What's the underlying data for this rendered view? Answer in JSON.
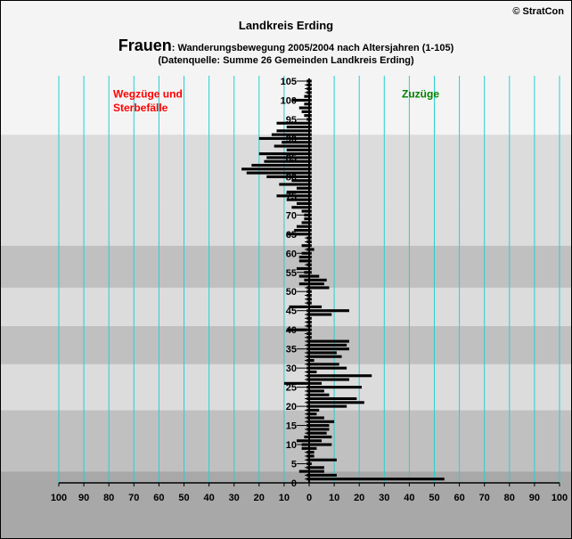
{
  "header": {
    "copyright": "© StratCon",
    "title": "Landkreis Erding",
    "subtitle_main": "Frauen",
    "subtitle_rest": ": Wanderungsbewegung 2005/2004 nach Altersjahren (1-105)",
    "source": "(Datenquelle: Summe 26 Gemeinden Landkreis Erding)"
  },
  "colors": {
    "background": "#f4f4f4",
    "bars": "#000000",
    "gridlines": "#26d0d0",
    "left_label": "#ff0000",
    "right_label": "#008000",
    "band_light": "#f4f4f4",
    "band_mid": "#dcdcdc",
    "band_dark": "#c0c0c0",
    "band_darker": "#a8a8a8"
  },
  "chart_data": {
    "type": "bar",
    "orientation": "horizontal-diverging",
    "title": "Landkreis Erding",
    "left_label": "Wegzüge und Sterbefälle",
    "right_label": "Zuzüge",
    "xlim": [
      -100,
      100
    ],
    "ylim": [
      0,
      105
    ],
    "x_ticks": [
      "100",
      "90",
      "80",
      "70",
      "60",
      "50",
      "40",
      "30",
      "20",
      "10",
      "0",
      "10",
      "20",
      "30",
      "40",
      "50",
      "60",
      "70",
      "80",
      "90",
      "100"
    ],
    "y_ticks": [
      "0",
      "5",
      "10",
      "15",
      "20",
      "25",
      "30",
      "35",
      "40",
      "45",
      "50",
      "55",
      "60",
      "65",
      "70",
      "75",
      "80",
      "85",
      "90",
      "95",
      "100",
      "105"
    ],
    "background_bands": [
      {
        "from": 0,
        "to": 3,
        "shade": "band_darker"
      },
      {
        "from": 3,
        "to": 19,
        "shade": "band_dark"
      },
      {
        "from": 19,
        "to": 31,
        "shade": "band_mid"
      },
      {
        "from": 31,
        "to": 41,
        "shade": "band_dark"
      },
      {
        "from": 41,
        "to": 51,
        "shade": "band_mid"
      },
      {
        "from": 51,
        "to": 62,
        "shade": "band_dark"
      },
      {
        "from": 62,
        "to": 73,
        "shade": "band_mid"
      },
      {
        "from": 73,
        "to": 91,
        "shade": "band_mid"
      },
      {
        "from": 91,
        "to": 106,
        "shade": "band_light"
      }
    ],
    "age": [
      1,
      2,
      3,
      4,
      5,
      6,
      7,
      8,
      9,
      10,
      11,
      12,
      13,
      14,
      15,
      16,
      17,
      18,
      19,
      20,
      21,
      22,
      23,
      24,
      25,
      26,
      27,
      28,
      29,
      30,
      31,
      32,
      33,
      34,
      35,
      36,
      37,
      38,
      39,
      40,
      41,
      42,
      43,
      44,
      45,
      46,
      47,
      48,
      49,
      50,
      51,
      52,
      53,
      54,
      55,
      56,
      57,
      58,
      59,
      60,
      61,
      62,
      63,
      64,
      65,
      66,
      67,
      68,
      69,
      70,
      71,
      72,
      73,
      74,
      75,
      76,
      77,
      78,
      79,
      80,
      81,
      82,
      83,
      84,
      85,
      86,
      87,
      88,
      89,
      90,
      91,
      92,
      93,
      94,
      95,
      96,
      97,
      98,
      99,
      100,
      101,
      102,
      103,
      104,
      105
    ],
    "series": [
      {
        "name": "Wegzüge und Sterbefälle",
        "values": [
          -1,
          -1,
          -4,
          -1,
          -1,
          -1,
          -1,
          -1,
          -3,
          -3,
          -5,
          -2,
          -1,
          -1,
          -1,
          -1,
          -1,
          -1,
          -1,
          -1,
          -1,
          -1,
          -1,
          -1,
          -1,
          -10,
          -1,
          -1,
          -1,
          -1,
          -1,
          -1,
          -1,
          -1,
          -1,
          -1,
          -1,
          -1,
          -1,
          -9,
          -1,
          -1,
          -1,
          -1,
          -1,
          -8,
          -1,
          -1,
          -1,
          -1,
          -1,
          -4,
          -2,
          -4,
          -2,
          -5,
          -1,
          -4,
          -4,
          -3,
          -1,
          -3,
          -1,
          -1,
          -9,
          -6,
          -5,
          -3,
          -2,
          -2,
          -3,
          -7,
          -5,
          -9,
          -13,
          -9,
          -5,
          -12,
          -7,
          -17,
          -25,
          -27,
          -23,
          -18,
          -17,
          -20,
          -9,
          -14,
          -11,
          -20,
          -15,
          -13,
          -9,
          -13,
          -1,
          -2,
          -3,
          -4,
          -2,
          -7,
          -2,
          -1,
          -1,
          -1,
          -1
        ]
      },
      {
        "name": "Zuzüge",
        "values": [
          54,
          11,
          6,
          6,
          1,
          11,
          2,
          2,
          3,
          9,
          5,
          9,
          7,
          8,
          8,
          10,
          6,
          3,
          4,
          15,
          22,
          19,
          8,
          6,
          21,
          5,
          16,
          25,
          3,
          15,
          12,
          2,
          13,
          11,
          16,
          15,
          16,
          1,
          1,
          1,
          1,
          1,
          1,
          9,
          16,
          5,
          1,
          1,
          1,
          1,
          8,
          6,
          7,
          4,
          1,
          1,
          1,
          1,
          1,
          1,
          2,
          1,
          1,
          1,
          1,
          1,
          1,
          1,
          1,
          1,
          1,
          1,
          1,
          1,
          1,
          1,
          1,
          1,
          1,
          1,
          1,
          1,
          1,
          1,
          1,
          1,
          1,
          1,
          1,
          1,
          1,
          1,
          1,
          1,
          1,
          1,
          1,
          1,
          1,
          1,
          1,
          1,
          1,
          1,
          1
        ]
      }
    ]
  }
}
